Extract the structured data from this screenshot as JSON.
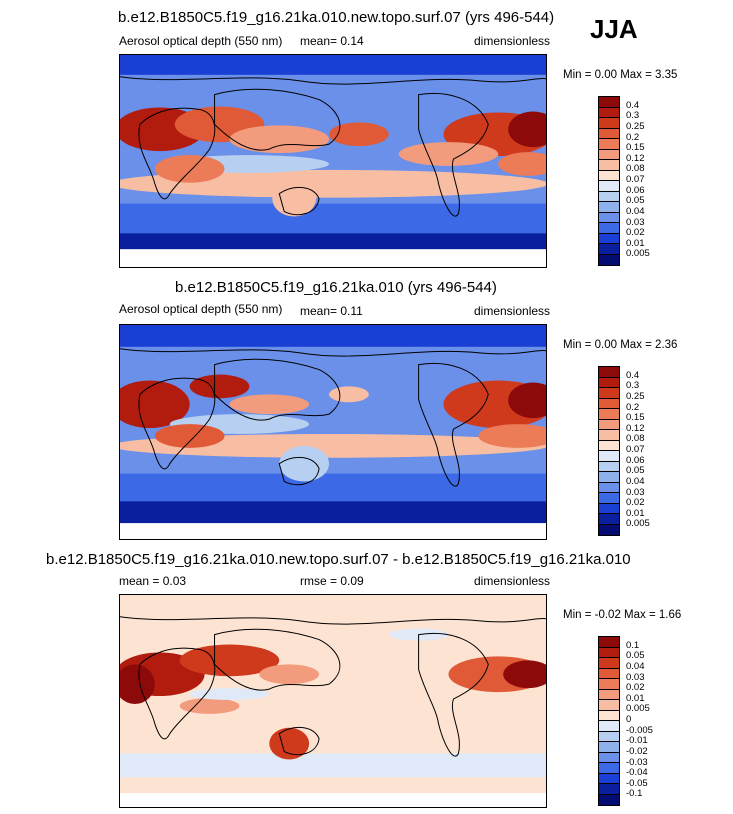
{
  "season": "JJA",
  "panels": [
    {
      "title": "b.e12.B1850C5.f19_g16.21ka.010.new.topo.surf.07 (yrs 496-544)",
      "variable": "Aerosol optical depth (550 nm)",
      "stat1": "mean=  0.14",
      "stat2": "",
      "units": "dimensionless",
      "minmax": "Min =   0.00 Max =   3.35",
      "levels": [
        "0.4",
        "0.3",
        "0.25",
        "0.2",
        "0.15",
        "0.12",
        "0.08",
        "0.07",
        "0.06",
        "0.05",
        "0.04",
        "0.03",
        "0.02",
        "0.01",
        "0.005"
      ],
      "colors": [
        "#8c0a0a",
        "#b11c0f",
        "#cf3a1d",
        "#e05a37",
        "#ec7b58",
        "#f39b7d",
        "#f8bea4",
        "#fde3d1",
        "#dfe9f7",
        "#b7cff1",
        "#8fb1ec",
        "#6a90ea",
        "#3c69e5",
        "#1a3fd4",
        "#0a1f9e",
        "#040c72"
      ]
    },
    {
      "title": "b.e12.B1850C5.f19_g16.21ka.010 (yrs 496-544)",
      "variable": "Aerosol optical depth (550 nm)",
      "stat1": "mean=  0.11",
      "stat2": "",
      "units": "dimensionless",
      "minmax": "Min =   0.00 Max =   2.36",
      "levels": [
        "0.4",
        "0.3",
        "0.25",
        "0.2",
        "0.15",
        "0.12",
        "0.08",
        "0.07",
        "0.06",
        "0.05",
        "0.04",
        "0.03",
        "0.02",
        "0.01",
        "0.005"
      ],
      "colors": [
        "#8c0a0a",
        "#b11c0f",
        "#cf3a1d",
        "#e05a37",
        "#ec7b58",
        "#f39b7d",
        "#f8bea4",
        "#fde3d1",
        "#dfe9f7",
        "#b7cff1",
        "#8fb1ec",
        "#6a90ea",
        "#3c69e5",
        "#1a3fd4",
        "#0a1f9e",
        "#040c72"
      ]
    },
    {
      "title": "b.e12.B1850C5.f19_g16.21ka.010.new.topo.surf.07 - b.e12.B1850C5.f19_g16.21ka.010",
      "variable": "",
      "stat1": "mean =   0.03",
      "stat2": "rmse =   0.09",
      "units": "dimensionless",
      "minmax": "Min =  -0.02 Max =   1.66",
      "levels": [
        "0.1",
        "0.05",
        "0.04",
        "0.03",
        "0.02",
        "0.01",
        "0.005",
        "0",
        "-0.005",
        "-0.01",
        "-0.02",
        "-0.03",
        "-0.04",
        "-0.05",
        "-0.1"
      ],
      "colors": [
        "#8c0a0a",
        "#b11c0f",
        "#cf3a1d",
        "#e05a37",
        "#ec7b58",
        "#f39b7d",
        "#f8bea4",
        "#fde3d1",
        "#dfe9f7",
        "#b7cff1",
        "#8fb1ec",
        "#6a90ea",
        "#3c69e5",
        "#1a3fd4",
        "#0a1f9e",
        "#040c72"
      ]
    }
  ]
}
